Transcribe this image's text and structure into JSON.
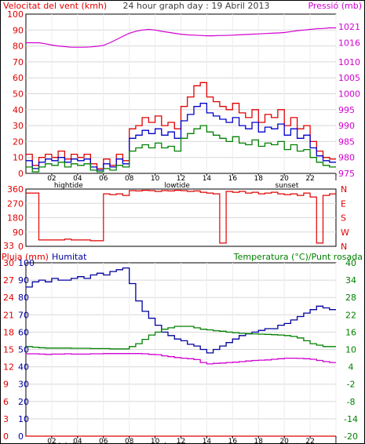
{
  "header": {
    "wind_label": "Velocitat del vent (kmh)",
    "graph_title": "24 hour graph day : 19 Abril 2013",
    "pressure_label": "Pressió (mb)"
  },
  "bottom_labels": {
    "rain": "Pluja (mm)",
    "humidity": "Humitat",
    "temp_dew": "Temperatura (°C)/Punt rosada"
  },
  "x_axis": {
    "hours": [
      "02",
      "04",
      "06",
      "08",
      "10",
      "12",
      "14",
      "16",
      "18",
      "20",
      "22",
      "I"
    ],
    "events": [
      "hightide",
      "lowtide",
      "sunset"
    ]
  },
  "colors": {
    "wind_gust": "#e00000",
    "wind_avg": "#0000c8",
    "wind_low": "#008000",
    "pressure": "#d000d0",
    "direction": "#e00000",
    "humidity": "#0000a0",
    "temperature": "#008000",
    "dewpoint": "#d000d0",
    "rain": "#e00000",
    "axis_red": "#e00000",
    "axis_magenta": "#d000d0",
    "axis_green": "#008000"
  },
  "chart_data": [
    {
      "type": "line",
      "title": "24 hour graph day : 19 Abril 2013",
      "xlabel": "",
      "ylabel": "Velocitat del vent (kmh)",
      "y2label": "Pressió (mb)",
      "x": [
        0,
        0.5,
        1,
        1.5,
        2,
        2.5,
        3,
        3.5,
        4,
        4.5,
        5,
        5.5,
        6,
        6.5,
        7,
        7.5,
        8,
        8.5,
        9,
        9.5,
        10,
        10.5,
        11,
        11.5,
        12,
        12.5,
        13,
        13.5,
        14,
        14.5,
        15,
        15.5,
        16,
        16.5,
        17,
        17.5,
        18,
        18.5,
        19,
        19.5,
        20,
        20.5,
        21,
        21.5,
        22,
        22.5,
        23,
        23.5
      ],
      "ylim": [
        0,
        100
      ],
      "yticks": [
        0,
        10,
        20,
        30,
        40,
        50,
        60,
        70,
        80,
        90,
        100
      ],
      "y2lim": [
        975,
        1025
      ],
      "y2ticks": [
        975,
        980,
        985,
        990,
        995,
        1000,
        1005,
        1010,
        1016,
        1021
      ],
      "series": [
        {
          "name": "Velocitat del vent (kmh)",
          "key": "wind_gust",
          "axis": "left",
          "values": [
            12,
            5,
            10,
            12,
            10,
            14,
            9,
            12,
            10,
            12,
            6,
            3,
            9,
            5,
            12,
            8,
            28,
            30,
            35,
            32,
            36,
            30,
            32,
            28,
            42,
            48,
            55,
            57,
            48,
            45,
            42,
            40,
            44,
            38,
            35,
            40,
            32,
            37,
            35,
            40,
            30,
            35,
            28,
            30,
            20,
            14,
            10,
            9
          ]
        },
        {
          "name": "",
          "key": "wind_avg",
          "axis": "left",
          "values": [
            8,
            3,
            7,
            9,
            8,
            10,
            7,
            9,
            8,
            9,
            4,
            2,
            6,
            4,
            9,
            6,
            22,
            24,
            27,
            25,
            28,
            24,
            26,
            22,
            33,
            37,
            42,
            44,
            38,
            36,
            34,
            32,
            35,
            30,
            28,
            32,
            26,
            29,
            28,
            31,
            24,
            28,
            22,
            24,
            16,
            11,
            8,
            7
          ]
        },
        {
          "name": "",
          "key": "wind_low",
          "axis": "left",
          "values": [
            4,
            1,
            4,
            6,
            5,
            7,
            4,
            6,
            5,
            6,
            2,
            1,
            3,
            2,
            5,
            4,
            14,
            16,
            18,
            16,
            19,
            16,
            17,
            14,
            22,
            25,
            28,
            30,
            26,
            24,
            22,
            20,
            23,
            19,
            18,
            21,
            17,
            19,
            18,
            20,
            15,
            18,
            14,
            15,
            10,
            7,
            5,
            4
          ]
        },
        {
          "name": "Pressió (mb)",
          "key": "pressure",
          "axis": "right",
          "values": [
            1016,
            1016,
            1016,
            1015.7,
            1015.3,
            1015,
            1014.8,
            1014.6,
            1014.6,
            1014.6,
            1014.7,
            1014.9,
            1015.2,
            1016,
            1017,
            1018,
            1019,
            1019.6,
            1020,
            1020.2,
            1020,
            1019.6,
            1019.3,
            1019,
            1018.7,
            1018.5,
            1018.4,
            1018.3,
            1018.2,
            1018.2,
            1018.3,
            1018.3,
            1018.4,
            1018.5,
            1018.6,
            1018.7,
            1018.8,
            1018.9,
            1019,
            1019.1,
            1019.2,
            1019.5,
            1019.8,
            1020,
            1020.2,
            1020.4,
            1020.5,
            1020.7
          ]
        }
      ]
    },
    {
      "type": "line",
      "title": "",
      "xlabel": "",
      "ylabel": "",
      "ylim": [
        0,
        360
      ],
      "yticks": [
        0,
        90,
        180,
        270,
        360
      ],
      "y2labels": [
        "N",
        "W",
        "S",
        "E",
        "N"
      ],
      "x": [
        0,
        0.5,
        1,
        1.5,
        2,
        2.5,
        3,
        3.5,
        4,
        4.5,
        5,
        5.5,
        6,
        6.5,
        7,
        7.5,
        8,
        8.5,
        9,
        9.5,
        10,
        10.5,
        11,
        11.5,
        12,
        12.5,
        13,
        13.5,
        14,
        14.5,
        15,
        15.5,
        16,
        16.5,
        17,
        17.5,
        18,
        18.5,
        19,
        19.5,
        20,
        20.5,
        21,
        21.5,
        22,
        22.5,
        23,
        23.5
      ],
      "series": [
        {
          "name": "",
          "key": "direction",
          "values": [
            335,
            335,
            40,
            40,
            40,
            40,
            45,
            40,
            40,
            40,
            35,
            35,
            330,
            325,
            330,
            320,
            350,
            348,
            352,
            350,
            345,
            350,
            348,
            352,
            350,
            345,
            348,
            340,
            335,
            330,
            20,
            345,
            340,
            345,
            335,
            340,
            330,
            335,
            340,
            330,
            325,
            330,
            320,
            335,
            310,
            20,
            320,
            330
          ]
        }
      ]
    },
    {
      "type": "line",
      "title": "",
      "xlabel": "",
      "ylabel": "Pluja (mm)",
      "y2label": "Temperatura (°C)/Punt rosada",
      "x": [
        0,
        0.5,
        1,
        1.5,
        2,
        2.5,
        3,
        3.5,
        4,
        4.5,
        5,
        5.5,
        6,
        6.5,
        7,
        7.5,
        8,
        8.5,
        9,
        9.5,
        10,
        10.5,
        11,
        11.5,
        12,
        12.5,
        13,
        13.5,
        14,
        14.5,
        15,
        15.5,
        16,
        16.5,
        17,
        17.5,
        18,
        18.5,
        19,
        19.5,
        20,
        20.5,
        21,
        21.5,
        22,
        22.5,
        23,
        23.5
      ],
      "ylim": [
        0,
        100
      ],
      "ylim_rain": [
        0,
        24
      ],
      "y2lim": [
        -20,
        40
      ],
      "yticks_humidity": [
        0,
        10,
        20,
        30,
        40,
        50,
        60,
        70,
        80,
        90,
        100
      ],
      "yticks_rain": [
        0,
        3,
        6,
        9,
        12,
        15,
        18,
        21,
        24,
        27,
        30,
        33
      ],
      "yticks_temp": [
        -20,
        -14,
        -8,
        -2,
        4,
        10,
        16,
        22,
        28,
        34,
        40
      ],
      "series": [
        {
          "name": "Humitat",
          "key": "humidity",
          "axis": "left",
          "values": [
            86,
            89,
            90,
            89,
            91,
            90,
            90,
            91,
            92,
            91,
            93,
            94,
            93,
            95,
            96,
            97,
            88,
            78,
            72,
            68,
            64,
            60,
            58,
            56,
            55,
            53,
            52,
            50,
            48,
            50,
            52,
            54,
            56,
            58,
            59,
            60,
            61,
            62,
            62,
            64,
            65,
            67,
            69,
            71,
            73,
            75,
            74,
            73
          ]
        },
        {
          "name": "Temperatura (°C)",
          "key": "temperature",
          "axis": "right",
          "values": [
            11,
            10.8,
            10.6,
            10.5,
            10.5,
            10.5,
            10.5,
            10.4,
            10.4,
            10.4,
            10.3,
            10.3,
            10.3,
            10.2,
            10.2,
            10.2,
            11,
            12,
            13.5,
            15,
            16,
            17,
            17.5,
            18,
            18,
            18,
            17.5,
            17,
            16.8,
            16.5,
            16.3,
            16,
            15.8,
            15.6,
            15.5,
            15.4,
            15.3,
            15.2,
            15.1,
            15,
            14.8,
            14.5,
            14,
            13,
            12,
            11.5,
            11,
            11
          ]
        },
        {
          "name": "Punt rosada",
          "key": "dewpoint",
          "axis": "right",
          "values": [
            8.5,
            8.5,
            8.4,
            8.3,
            8.4,
            8.4,
            8.5,
            8.4,
            8.4,
            8.4,
            8.5,
            8.5,
            8.6,
            8.6,
            8.6,
            8.6,
            8.6,
            8.6,
            8.5,
            8.3,
            8.2,
            7.8,
            7.5,
            7.2,
            7,
            6.8,
            6.5,
            5.5,
            5,
            5.2,
            5.3,
            5.5,
            5.6,
            5.8,
            6,
            6.2,
            6.3,
            6.4,
            6.6,
            6.8,
            7,
            7,
            6.9,
            6.8,
            6.6,
            6.2,
            5.8,
            5.5
          ]
        },
        {
          "name": "Pluja (mm)",
          "key": "rain",
          "axis": "rain",
          "values": [
            0,
            0,
            0,
            0,
            0,
            0,
            0,
            0,
            0,
            0,
            0,
            0,
            0,
            0,
            0,
            0,
            0,
            0,
            0,
            0,
            0,
            0,
            0,
            0,
            0,
            0,
            0,
            0,
            0,
            0,
            0,
            0,
            0,
            0,
            0,
            0,
            0,
            0,
            0,
            0,
            0,
            0,
            0,
            0,
            0,
            0,
            0,
            0
          ]
        }
      ]
    }
  ]
}
